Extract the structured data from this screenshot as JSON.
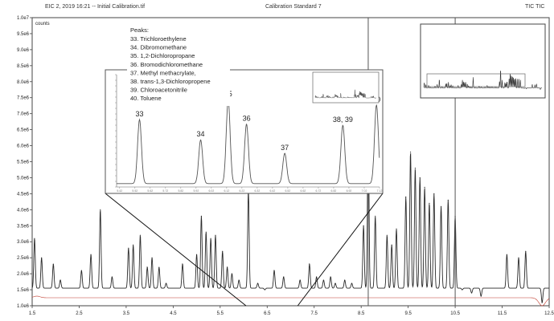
{
  "window": {
    "title_left": "EIC 2, 2019  16:21 -- Initial Calibration.tif",
    "title_center": "Calibration Standard 7",
    "title_right": "TIC TIC"
  },
  "chart_data": [
    {
      "type": "line",
      "title": "",
      "xlabel": "",
      "ylabel": "counts",
      "y_tick_labels": [
        "1.0e6",
        "1.5e6",
        "2.0e6",
        "2.5e6",
        "3.0e6",
        "3.5e6",
        "4.0e6",
        "4.5e6",
        "5.0e6",
        "5.5e6",
        "6.0e6",
        "6.5e6",
        "7.0e6",
        "7.5e6",
        "8.0e6",
        "8.5e6",
        "9.0e6",
        "9.5e6",
        "1.0e7"
      ],
      "ylim": [
        1000000,
        10000000
      ],
      "x_tick_labels": [
        "1.5",
        "2.5",
        "3.5",
        "4.5",
        "5.5",
        "6.5",
        "7.5",
        "8.5",
        "9.5",
        "10.5",
        "11.5",
        "12.5"
      ],
      "xlim": [
        1.5,
        12.5
      ],
      "baseline": 1550000,
      "peaks": [
        {
          "t": 1.55,
          "h": 3100000
        },
        {
          "t": 1.7,
          "h": 2500000
        },
        {
          "t": 1.95,
          "h": 2300000
        },
        {
          "t": 2.1,
          "h": 1800000
        },
        {
          "t": 2.55,
          "h": 2100000
        },
        {
          "t": 2.75,
          "h": 2600000
        },
        {
          "t": 2.95,
          "h": 4000000
        },
        {
          "t": 3.2,
          "h": 1900000
        },
        {
          "t": 3.55,
          "h": 2800000
        },
        {
          "t": 3.65,
          "h": 2900000
        },
        {
          "t": 3.8,
          "h": 3200000
        },
        {
          "t": 3.95,
          "h": 2200000
        },
        {
          "t": 4.05,
          "h": 2500000
        },
        {
          "t": 4.2,
          "h": 2200000
        },
        {
          "t": 4.35,
          "h": 1700000
        },
        {
          "t": 4.7,
          "h": 2300000
        },
        {
          "t": 5.0,
          "h": 2600000
        },
        {
          "t": 5.1,
          "h": 3800000
        },
        {
          "t": 5.2,
          "h": 3300000
        },
        {
          "t": 5.3,
          "h": 3100000
        },
        {
          "t": 5.4,
          "h": 3200000
        },
        {
          "t": 5.55,
          "h": 2700000
        },
        {
          "t": 5.65,
          "h": 2200000
        },
        {
          "t": 5.75,
          "h": 2000000
        },
        {
          "t": 5.9,
          "h": 1800000
        },
        {
          "t": 6.1,
          "h": 4600000
        },
        {
          "t": 6.3,
          "h": 1700000
        },
        {
          "t": 6.45,
          "h": 1500000
        },
        {
          "t": 6.65,
          "h": 2100000
        },
        {
          "t": 6.85,
          "h": 1900000
        },
        {
          "t": 7.2,
          "h": 1800000
        },
        {
          "t": 7.4,
          "h": 2300000
        },
        {
          "t": 7.55,
          "h": 1900000
        },
        {
          "t": 7.7,
          "h": 1800000
        },
        {
          "t": 7.85,
          "h": 1900000
        },
        {
          "t": 7.95,
          "h": 1700000
        },
        {
          "t": 8.15,
          "h": 1800000
        },
        {
          "t": 8.3,
          "h": 1700000
        },
        {
          "t": 8.55,
          "h": 3500000
        },
        {
          "t": 8.65,
          "h": 6900000
        },
        {
          "t": 8.8,
          "h": 3800000
        },
        {
          "t": 9.05,
          "h": 3200000
        },
        {
          "t": 9.15,
          "h": 2900000
        },
        {
          "t": 9.25,
          "h": 3400000
        },
        {
          "t": 9.45,
          "h": 4400000
        },
        {
          "t": 9.55,
          "h": 5800000
        },
        {
          "t": 9.65,
          "h": 5300000
        },
        {
          "t": 9.75,
          "h": 5000000
        },
        {
          "t": 9.85,
          "h": 4700000
        },
        {
          "t": 9.95,
          "h": 4200000
        },
        {
          "t": 10.05,
          "h": 4500000
        },
        {
          "t": 10.2,
          "h": 4100000
        },
        {
          "t": 10.35,
          "h": 4300000
        },
        {
          "t": 10.5,
          "h": 3800000
        },
        {
          "t": 10.65,
          "h": 1500000
        },
        {
          "t": 10.85,
          "h": 1400000
        },
        {
          "t": 11.05,
          "h": 1300000
        },
        {
          "t": 11.6,
          "h": 2600000
        },
        {
          "t": 11.85,
          "h": 2500000
        },
        {
          "t": 12.0,
          "h": 2700000
        },
        {
          "t": 12.35,
          "h": 1100000
        }
      ]
    },
    {
      "type": "line",
      "title": "",
      "legend_title": "Peaks:",
      "legend": [
        "33. Trichloroethylene",
        "34. Dibromomethane",
        "35. 1,2-Dichloropropane",
        "36.  Bromodichloromethane",
        "37. Methyl methacrylate,",
        "38. trans-1,3-Dichloropropene",
        "39. Chloroacetonitrile",
        "40. Toluene"
      ],
      "x_tick_labels": [
        "5.42",
        "5.52",
        "5.62",
        "5.72",
        "5.82",
        "5.92",
        "6.02",
        "6.12",
        "6.22",
        "6.32",
        "6.42",
        "6.52",
        "6.62",
        "6.72",
        "6.82",
        "6.92",
        "7.02",
        "7.12"
      ],
      "xlim": [
        5.4,
        7.12
      ],
      "ylim": [
        0,
        100
      ],
      "baseline": 3,
      "peaks": [
        {
          "label": "33",
          "t": 5.55,
          "h": 60
        },
        {
          "label": "34",
          "t": 5.95,
          "h": 42
        },
        {
          "label": "35",
          "t": 6.13,
          "h": 78
        },
        {
          "label": "36",
          "t": 6.25,
          "h": 56
        },
        {
          "label": "37",
          "t": 6.5,
          "h": 30
        },
        {
          "label": "38, 39",
          "t": 6.88,
          "h": 55
        },
        {
          "label": "40",
          "t": 7.1,
          "h": 73
        }
      ]
    }
  ]
}
